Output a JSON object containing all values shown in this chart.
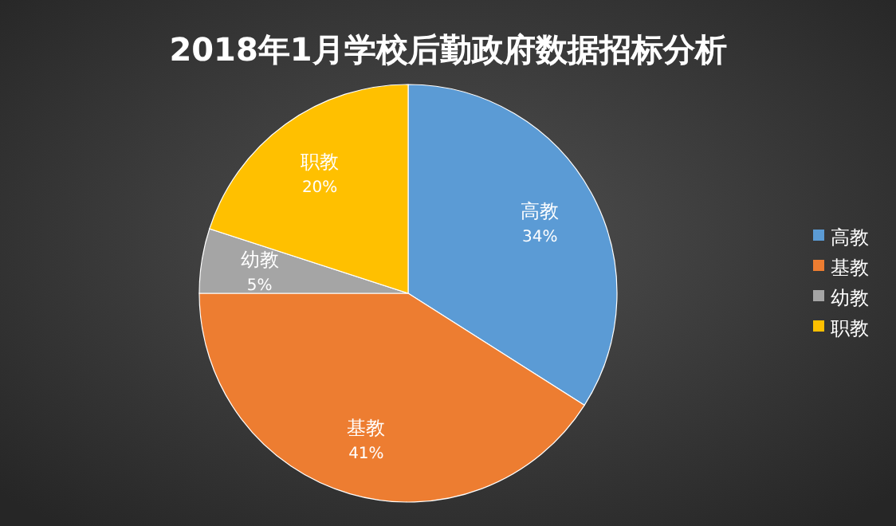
{
  "chart_data": {
    "type": "pie",
    "title": "2018年1月学校后勤政府数据招标分析",
    "categories": [
      "高教",
      "基教",
      "幼教",
      "职教"
    ],
    "values": [
      34,
      41,
      5,
      20
    ],
    "colors": [
      "#5b9bd5",
      "#ed7d31",
      "#a5a5a5",
      "#ffc000"
    ],
    "value_labels": [
      "34%",
      "41%",
      "5%",
      "20%"
    ],
    "legend": "right"
  }
}
